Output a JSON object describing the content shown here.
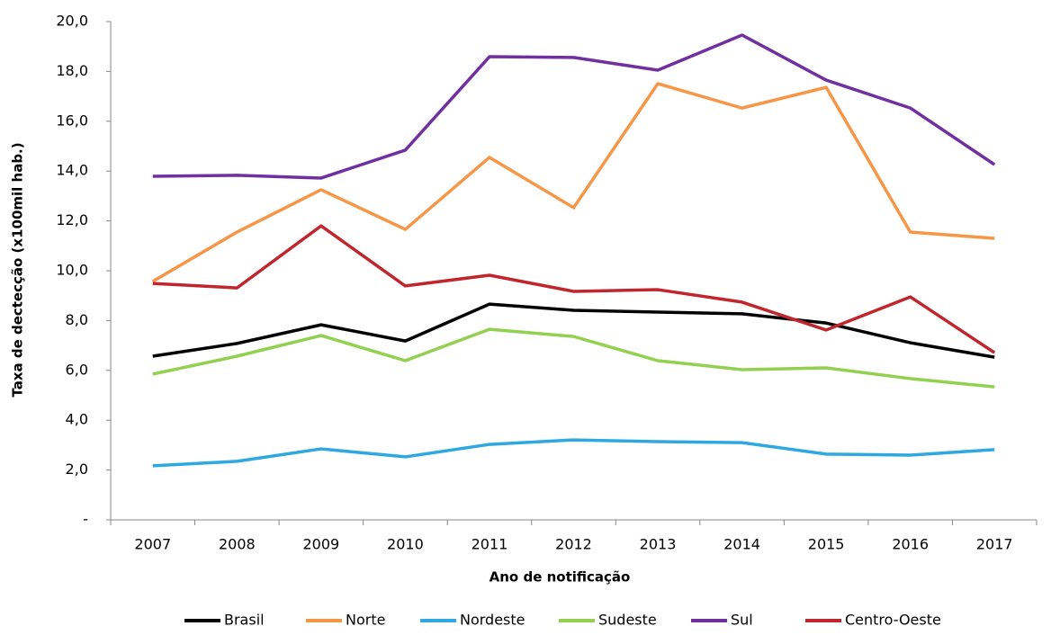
{
  "chart_data": {
    "type": "line",
    "y_label": "Taxa de dectecção (x100mil hab.)",
    "x_label": "Ano de notificação",
    "categories": [
      "2007",
      "2008",
      "2009",
      "2010",
      "2011",
      "2012",
      "2013",
      "2014",
      "2015",
      "2016",
      "2017"
    ],
    "series": [
      {
        "name": "Brasil",
        "color": "#000000",
        "values": [
          6.57,
          7.08,
          7.83,
          7.18,
          8.66,
          8.41,
          8.34,
          8.27,
          7.9,
          7.11,
          6.53
        ]
      },
      {
        "name": "Norte",
        "color": "#f79646",
        "values": [
          9.57,
          11.55,
          13.25,
          11.66,
          14.55,
          12.53,
          17.51,
          16.53,
          17.36,
          11.55,
          11.3
        ]
      },
      {
        "name": "Nordeste",
        "color": "#2ea8e0",
        "values": [
          2.17,
          2.35,
          2.85,
          2.53,
          3.03,
          3.21,
          3.14,
          3.1,
          2.64,
          2.6,
          2.82
        ]
      },
      {
        "name": "Sudeste",
        "color": "#92d050",
        "values": [
          5.85,
          6.57,
          7.4,
          6.39,
          7.65,
          7.36,
          6.39,
          6.03,
          6.1,
          5.67,
          5.34
        ]
      },
      {
        "name": "Sul",
        "color": "#7030a0",
        "values": [
          13.79,
          13.83,
          13.72,
          14.84,
          18.59,
          18.56,
          18.05,
          19.46,
          17.65,
          16.53,
          14.26
        ]
      },
      {
        "name": "Centro-Oeste",
        "color": "#c0262d",
        "values": [
          9.49,
          9.31,
          11.8,
          9.39,
          9.82,
          9.17,
          9.24,
          8.74,
          7.62,
          8.95,
          6.71
        ]
      }
    ],
    "ylim": [
      0,
      20
    ],
    "yticks": [
      {
        "value": 0,
        "label": "-"
      },
      {
        "value": 2,
        "label": "2,0"
      },
      {
        "value": 4,
        "label": "4,0"
      },
      {
        "value": 6,
        "label": "6,0"
      },
      {
        "value": 8,
        "label": "8,0"
      },
      {
        "value": 10,
        "label": "10,0"
      },
      {
        "value": 12,
        "label": "12,0"
      },
      {
        "value": 14,
        "label": "14,0"
      },
      {
        "value": 16,
        "label": "16,0"
      },
      {
        "value": 18,
        "label": "18,0"
      },
      {
        "value": 20,
        "label": "20,0"
      }
    ],
    "legend": "bottom",
    "grid": false
  }
}
